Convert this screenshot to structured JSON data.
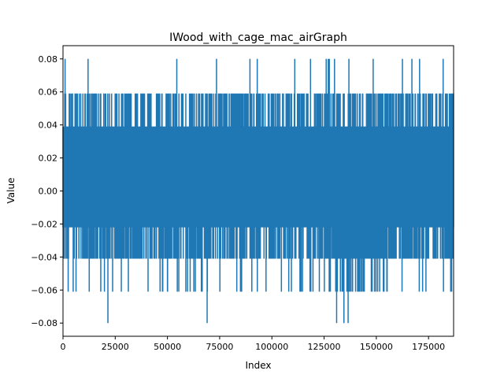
{
  "chart_data": {
    "type": "line",
    "title": "IWood_with_cage_mac_airGraph",
    "xlabel": "Index",
    "ylabel": "Value",
    "xlim": [
      0,
      187000
    ],
    "ylim": [
      -0.088,
      0.088
    ],
    "grid": false,
    "series_color": "#1f77b4",
    "x_ticks": [
      0,
      25000,
      50000,
      75000,
      100000,
      125000,
      150000,
      175000
    ],
    "x_tick_labels": [
      "0",
      "25000",
      "50000",
      "75000",
      "100000",
      "125000",
      "150000",
      "175000"
    ],
    "y_ticks": [
      -0.08,
      -0.06,
      -0.04,
      -0.02,
      0.0,
      0.02,
      0.04,
      0.06,
      0.08
    ],
    "y_tick_labels": [
      "−0.08",
      "−0.06",
      "−0.04",
      "−0.02",
      "0.00",
      "0.02",
      "0.04",
      "0.06",
      "0.08"
    ],
    "series": [
      {
        "values_summary": "dense signal of ~187000 samples on a quantized grid of ±0.02 steps; bulk band between -0.022 and 0.039",
        "band": [
          -0.022,
          0.039
        ],
        "max": 0.08,
        "min": -0.08,
        "spikes_high_0_08": [
          1000,
          12000,
          73500,
          89500,
          93000,
          118500,
          126000,
          127000,
          127500,
          148500,
          162500
        ],
        "spikes_low_minus_0_08": [
          21500,
          69000,
          131000,
          134500,
          136500
        ],
        "dense_low_region": [
          125000,
          155000
        ]
      }
    ]
  }
}
